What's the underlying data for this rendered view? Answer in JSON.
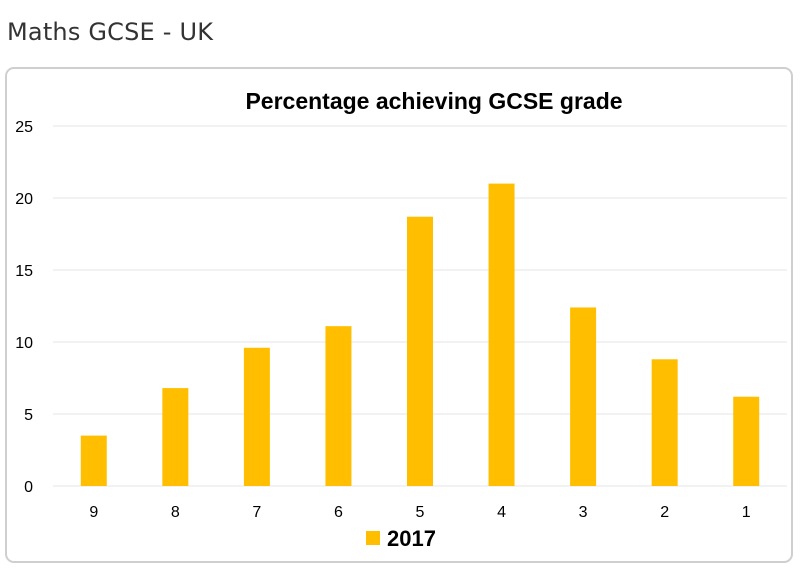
{
  "page": {
    "title": "Maths GCSE - UK"
  },
  "colors": {
    "bar": "#FFBF00",
    "grid": "#e6e6e6",
    "text": "#000000"
  },
  "chart_data": {
    "type": "bar",
    "title": "Percentage achieving GCSE grade",
    "xlabel": "",
    "ylabel": "",
    "categories": [
      "9",
      "8",
      "7",
      "6",
      "5",
      "4",
      "3",
      "2",
      "1"
    ],
    "series": [
      {
        "name": "2017",
        "values": [
          3.5,
          6.8,
          9.6,
          11.1,
          18.7,
          21.0,
          12.4,
          8.8,
          6.2
        ]
      }
    ],
    "ylim": [
      0,
      25
    ],
    "yticks": [
      0,
      5,
      10,
      15,
      20,
      25
    ],
    "grid": true,
    "legend": "bottom"
  }
}
